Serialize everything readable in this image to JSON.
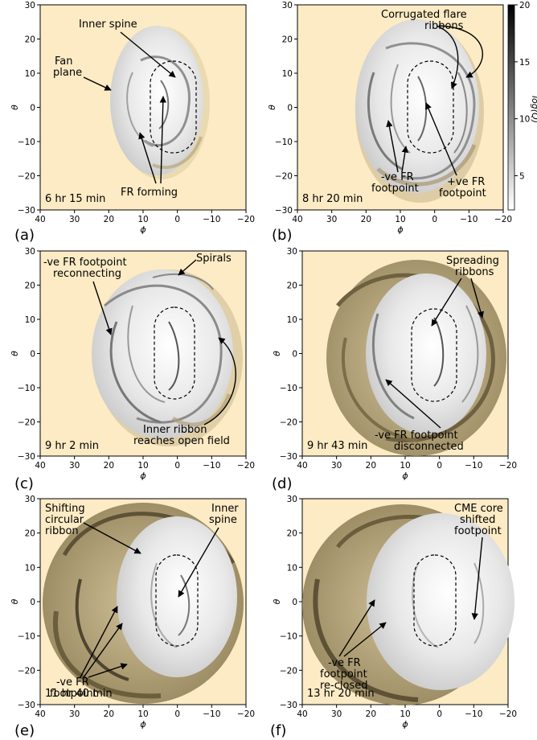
{
  "figure": {
    "background_color": "#fcebc4",
    "colorbar": {
      "label": "log(Q)",
      "ticks": [
        "20",
        "15",
        "10",
        "5"
      ],
      "range": [
        2,
        20
      ],
      "colormap": "greys"
    }
  },
  "panels": [
    {
      "label": "(a)",
      "time": "6 hr 15 min",
      "annotations": [
        "Inner spine",
        "Fan",
        "plane",
        "FR forming"
      ]
    },
    {
      "label": "(b)",
      "time": "8 hr 20 min",
      "annotations": [
        "Corrugated flare",
        "ribbons",
        "-ve FR",
        "footpoint",
        "+ve FR",
        "footpoint"
      ]
    },
    {
      "label": "(c)",
      "time": "9 hr 2 min",
      "annotations": [
        "-ve FR footpoint",
        "reconnecting",
        "Spirals",
        "Inner ribbon",
        "reaches open field"
      ]
    },
    {
      "label": "(d)",
      "time": "9 hr 43 min",
      "annotations": [
        "Spreading",
        "ribbons",
        "-ve FR footpoint",
        "disconnected"
      ]
    },
    {
      "label": "(e)",
      "time": "11 hr 40 min",
      "annotations": [
        "Shifting",
        "circular",
        "ribbon",
        "Inner",
        "spine",
        "-ve FR",
        "footpoint"
      ]
    },
    {
      "label": "(f)",
      "time": "13 hr 20 min",
      "annotations": [
        "CME core",
        "shifted",
        "footpoint",
        "-ve FR",
        "footpoint",
        "re-closed"
      ]
    }
  ],
  "chart_data": [
    {
      "type": "heatmap",
      "panel": "(a)",
      "xlabel": "ϕ",
      "ylabel": "θ",
      "xlim": [
        40,
        -20
      ],
      "ylim": [
        -30,
        30
      ],
      "x_ticks": [
        "40",
        "30",
        "20",
        "10",
        "0",
        "−10",
        "−20"
      ],
      "y_ticks": [
        "30",
        "20",
        "10",
        "0",
        "−10",
        "−20",
        "−30"
      ]
    },
    {
      "type": "heatmap",
      "panel": "(b)",
      "xlabel": "ϕ",
      "ylabel": "θ",
      "xlim": [
        40,
        -20
      ],
      "ylim": [
        -30,
        30
      ],
      "x_ticks": [
        "40",
        "30",
        "20",
        "10",
        "0",
        "−10",
        "−20"
      ],
      "y_ticks": [
        "30",
        "20",
        "10",
        "0",
        "−10",
        "−20",
        "−30"
      ]
    },
    {
      "type": "heatmap",
      "panel": "(c)",
      "xlabel": "ϕ",
      "ylabel": "θ",
      "xlim": [
        40,
        -20
      ],
      "ylim": [
        -30,
        30
      ],
      "x_ticks": [
        "40",
        "30",
        "20",
        "10",
        "0",
        "−10",
        "−20"
      ],
      "y_ticks": [
        "30",
        "20",
        "10",
        "0",
        "−10",
        "−20",
        "−30"
      ]
    },
    {
      "type": "heatmap",
      "panel": "(d)",
      "xlabel": "ϕ",
      "ylabel": "θ",
      "xlim": [
        40,
        -20
      ],
      "ylim": [
        -30,
        30
      ],
      "x_ticks": [
        "40",
        "30",
        "20",
        "10",
        "0",
        "−10",
        "−20"
      ],
      "y_ticks": [
        "30",
        "20",
        "10",
        "0",
        "−10",
        "−20",
        "−30"
      ]
    },
    {
      "type": "heatmap",
      "panel": "(e)",
      "xlabel": "ϕ",
      "ylabel": "θ",
      "xlim": [
        40,
        -20
      ],
      "ylim": [
        -30,
        30
      ],
      "x_ticks": [
        "40",
        "30",
        "20",
        "10",
        "0",
        "−10",
        "−20"
      ],
      "y_ticks": [
        "30",
        "20",
        "10",
        "0",
        "−10",
        "−20",
        "−30"
      ]
    },
    {
      "type": "heatmap",
      "panel": "(f)",
      "xlabel": "ϕ",
      "ylabel": "θ",
      "xlim": [
        40,
        -20
      ],
      "ylim": [
        -30,
        30
      ],
      "x_ticks": [
        "40",
        "30",
        "20",
        "10",
        "0",
        "−10",
        "−20"
      ],
      "y_ticks": [
        "30",
        "20",
        "10",
        "0",
        "−10",
        "−20",
        "−30"
      ]
    }
  ]
}
